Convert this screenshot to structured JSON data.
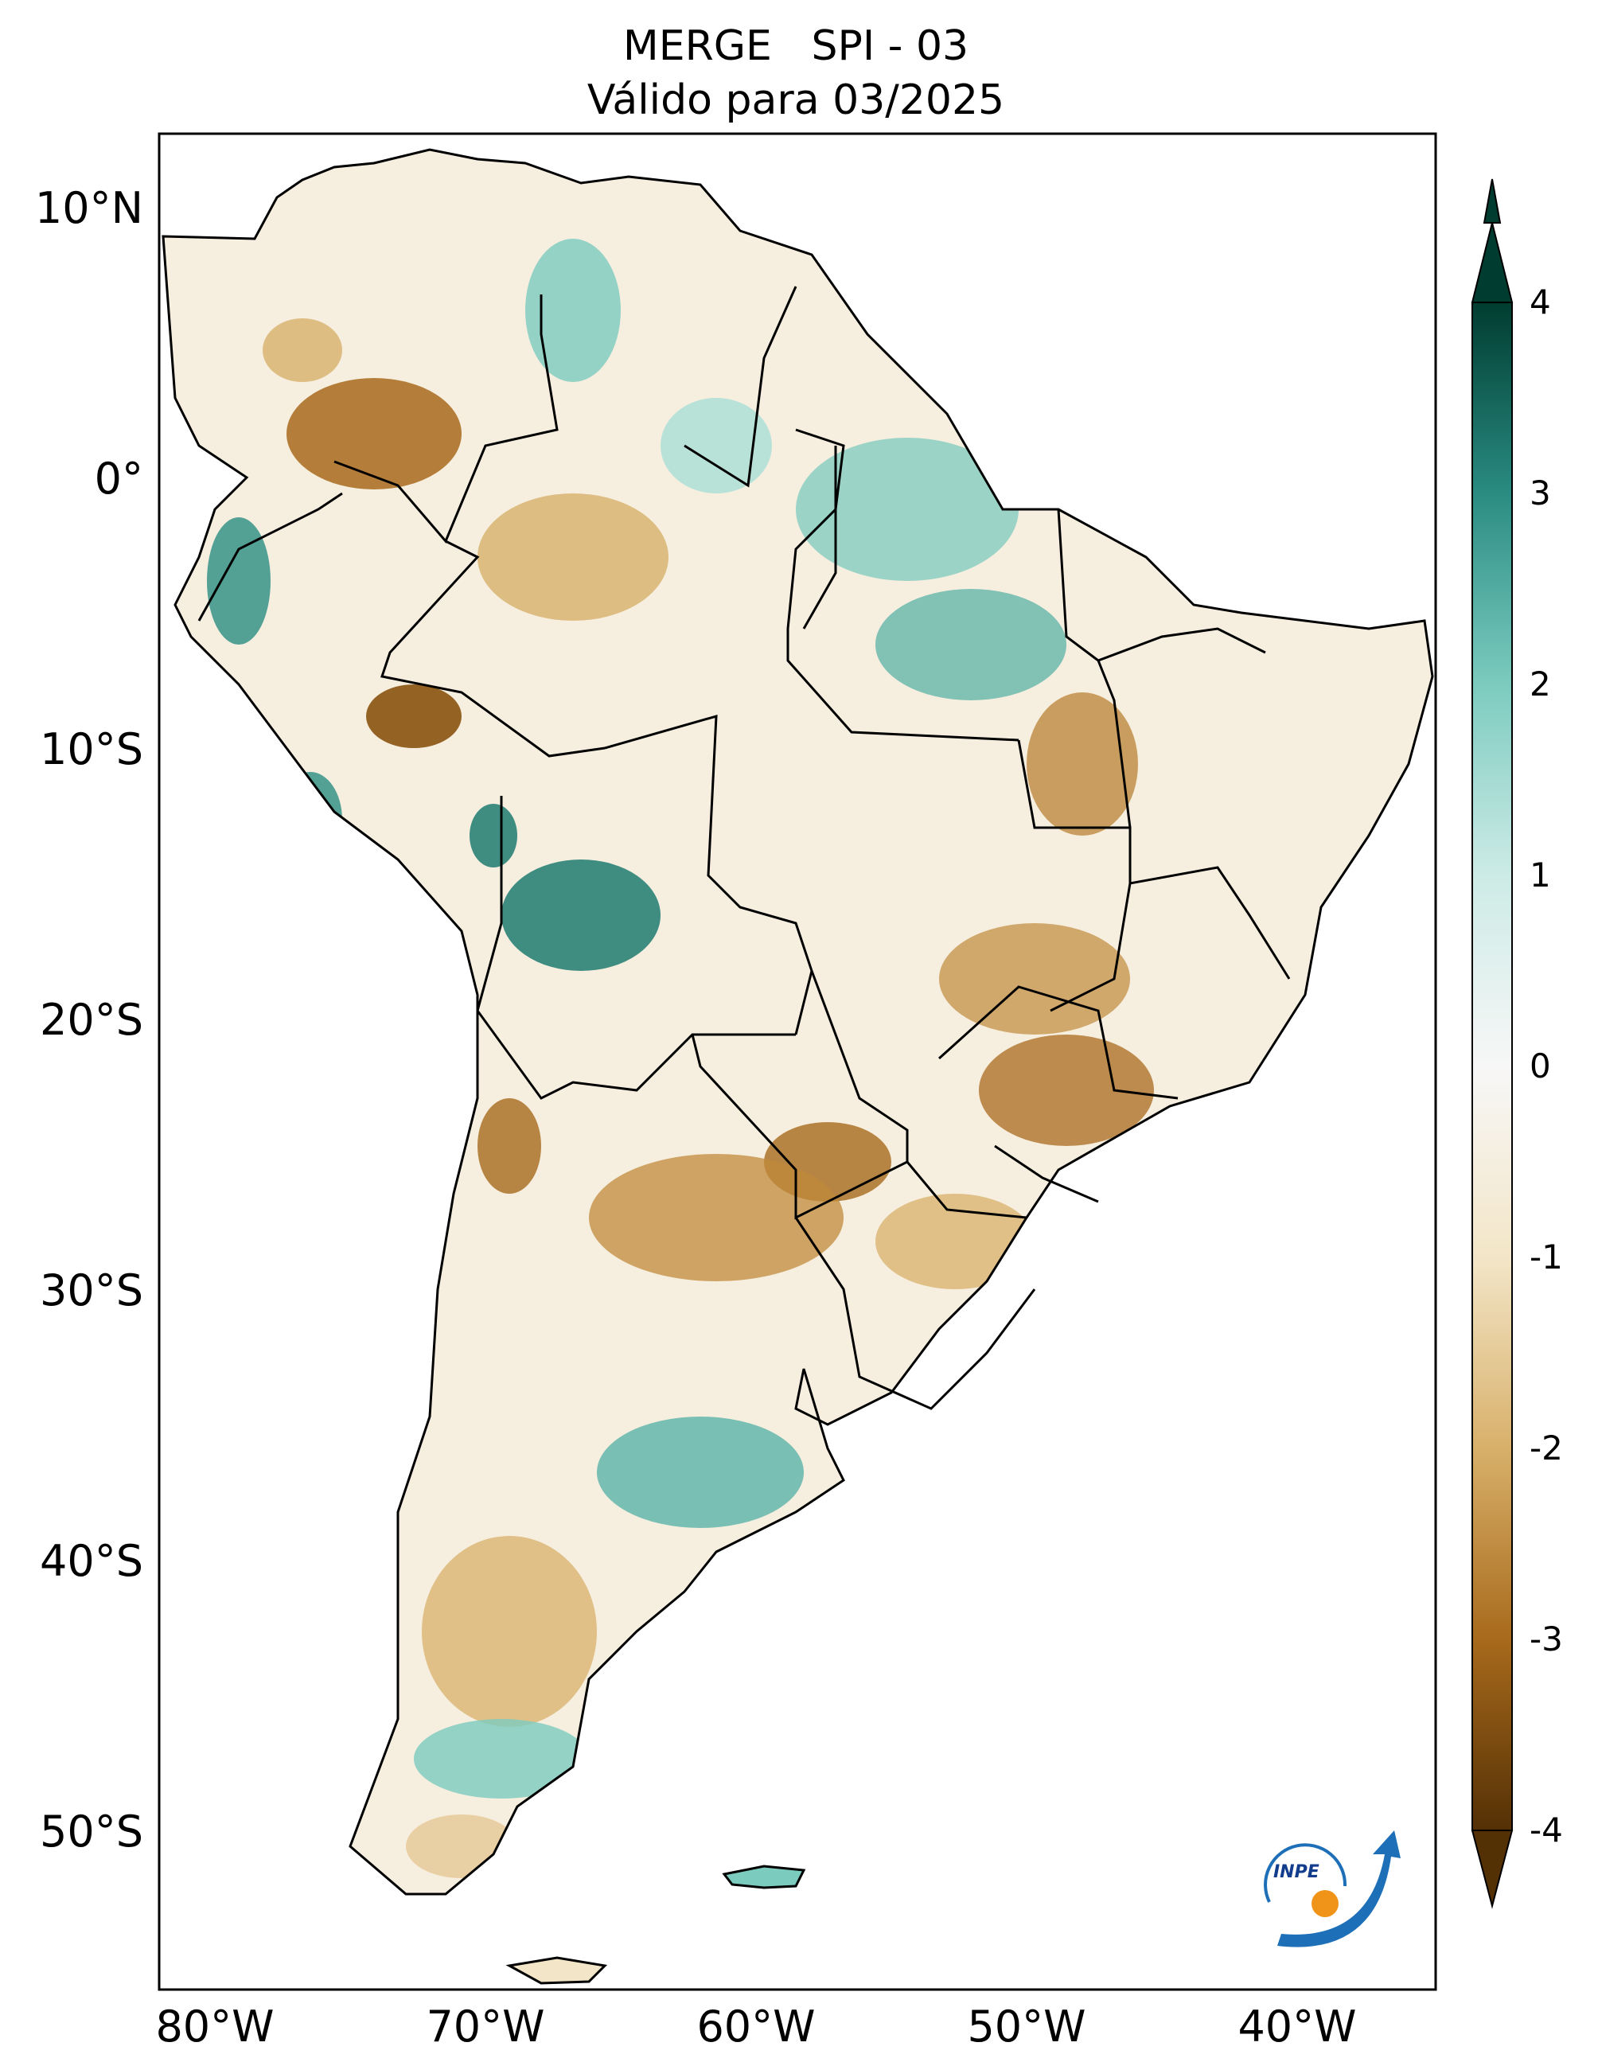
{
  "title": {
    "line1": "MERGE   SPI - 03",
    "line2": "Válido para 03/2025"
  },
  "axes": {
    "lat_ticks": [
      {
        "label": "10°N",
        "lat": 10
      },
      {
        "label": "0°",
        "lat": 0
      },
      {
        "label": "10°S",
        "lat": -10
      },
      {
        "label": "20°S",
        "lat": -20
      },
      {
        "label": "30°S",
        "lat": -30
      },
      {
        "label": "40°S",
        "lat": -40
      },
      {
        "label": "50°S",
        "lat": -50
      }
    ],
    "lon_ticks": [
      {
        "label": "80°W",
        "lon": -80
      },
      {
        "label": "70°W",
        "lon": -70
      },
      {
        "label": "60°W",
        "lon": -60
      },
      {
        "label": "50°W",
        "lon": -50
      },
      {
        "label": "40°W",
        "lon": -40
      }
    ],
    "lon_range": [
      -82,
      -35
    ],
    "lat_range": [
      -56,
      13
    ]
  },
  "colorbar": {
    "min": -4,
    "max": 4,
    "ticks": [
      "4",
      "3",
      "2",
      "1",
      "0",
      "-1",
      "-2",
      "-3",
      "-4"
    ],
    "colors": {
      "dry_extreme": "#543005",
      "dry_strong": "#a86a1c",
      "dry_moderate": "#d8b06a",
      "dry_mild": "#f3e6c8",
      "neutral": "#f7f7f7",
      "wet_mild": "#cdebe6",
      "wet_moderate": "#7ccbbf",
      "wet_strong": "#2a8c82",
      "wet_extreme": "#003c30"
    }
  },
  "logo": {
    "text": "INPE"
  }
}
